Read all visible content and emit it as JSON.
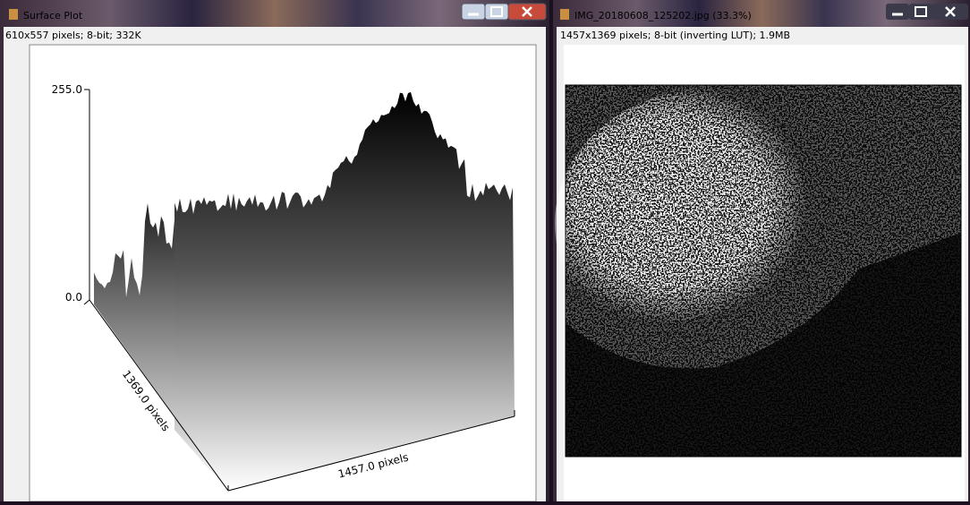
{
  "windows": [
    {
      "title": "Surface Plot",
      "info": "610x557 pixels; 8-bit; 332K",
      "plot": {
        "z_max_label": "255.0",
        "z_min_label": "0.0",
        "y_axis_label": "1369.0 pixels",
        "x_axis_label": "1457.0 pixels"
      }
    },
    {
      "title": "IMG_20180608_125202.jpg (33.3%)",
      "info": "1457x1369 pixels; 8-bit (inverting LUT); 1.9MB"
    }
  ]
}
